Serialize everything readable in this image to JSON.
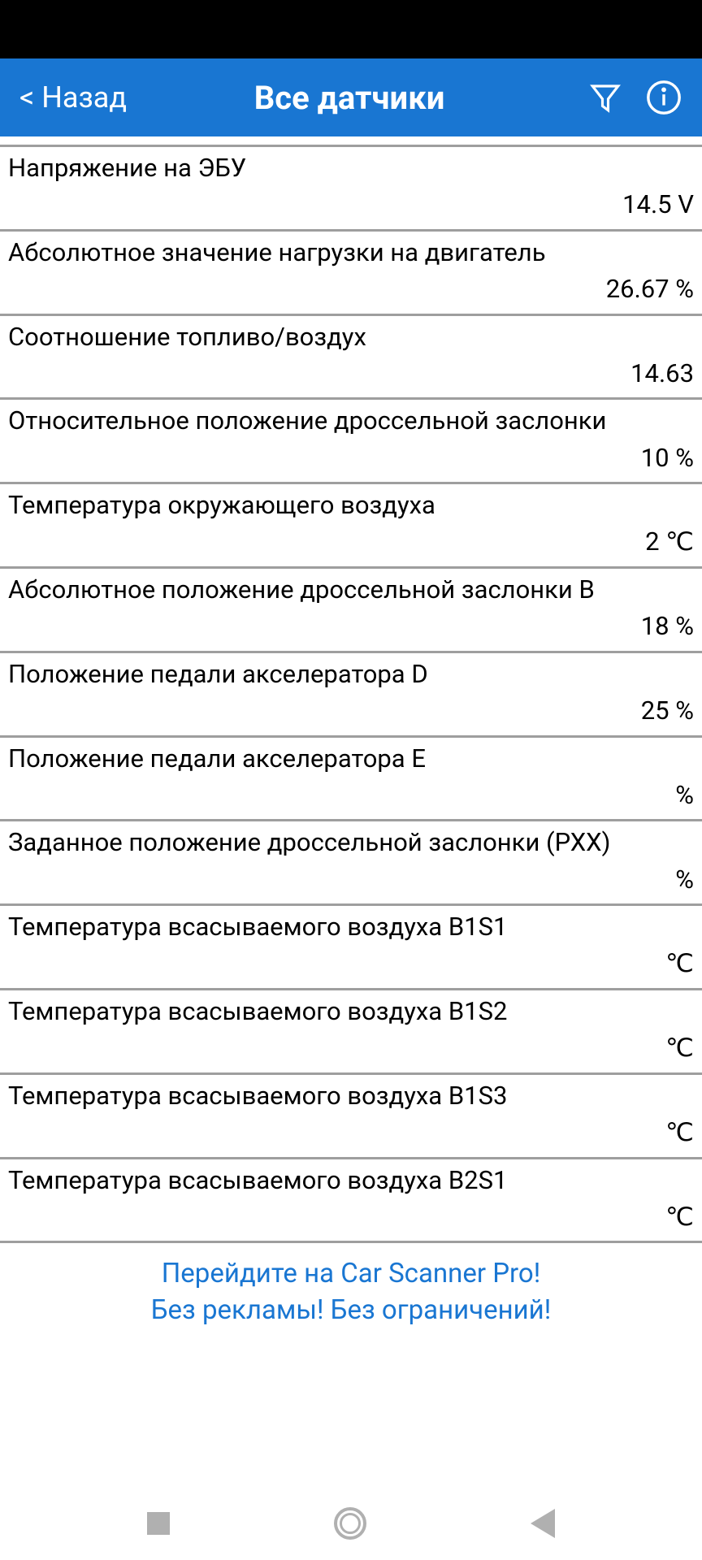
{
  "header": {
    "back_label": "< Назад",
    "title": "Все датчики"
  },
  "sensors": [
    {
      "label": "Напряжение на ЭБУ",
      "value": "14.5 V"
    },
    {
      "label": "Абсолютное значение нагрузки на двигатель",
      "value": "26.67 %"
    },
    {
      "label": "Соотношение топливо/воздух",
      "value": "14.63"
    },
    {
      "label": "Относительное положение дроссельной заслонки",
      "value": "10 %"
    },
    {
      "label": "Температура окружающего воздуха",
      "value": "2 ℃"
    },
    {
      "label": "Абсолютное положение дроссельной заслонки B",
      "value": "18 %"
    },
    {
      "label": "Положение педали акселератора D",
      "value": "25 %"
    },
    {
      "label": "Положение педали акселератора E",
      "value": "%"
    },
    {
      "label": "Заданное положение дроссельной заслонки (РХХ)",
      "value": "%"
    },
    {
      "label": "Температура всасываемого воздуха B1S1",
      "value": "℃"
    },
    {
      "label": "Температура всасываемого воздуха B1S2",
      "value": "℃"
    },
    {
      "label": "Температура всасываемого воздуха B1S3",
      "value": "℃"
    },
    {
      "label": "Температура всасываемого воздуха B2S1",
      "value": "℃"
    }
  ],
  "promo": {
    "line1": "Перейдите на Car Scanner Pro!",
    "line2": "Без рекламы! Без ограничений!"
  },
  "colors": {
    "header_bg": "#1976d2",
    "divider": "#9e9e9e",
    "text": "#000000",
    "promo_text": "#1976d2"
  }
}
